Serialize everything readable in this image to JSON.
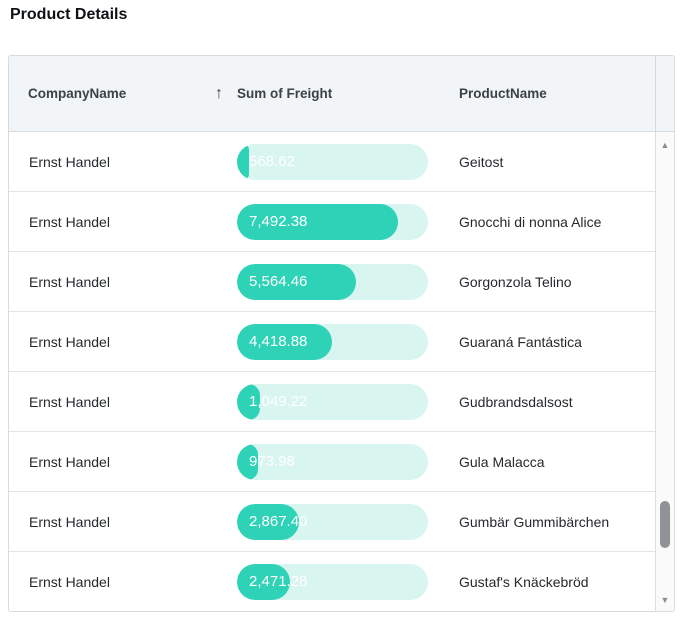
{
  "title": "Product Details",
  "colors": {
    "accent": "#2ed3b7",
    "track": "#d9f5ef",
    "header_bg": "#f1f5f8"
  },
  "table": {
    "columns": [
      {
        "label": "CompanyName",
        "sorted": "ascending"
      },
      {
        "label": "Sum of Freight"
      },
      {
        "label": "ProductName"
      }
    ],
    "sort_icon": "↑",
    "bar_scale_max": 8900,
    "rows": [
      {
        "company": "Ernst Handel",
        "freight": "568.62",
        "fill_pct": 6.4,
        "product": "Geitost"
      },
      {
        "company": "Ernst Handel",
        "freight": "7,492.38",
        "fill_pct": 84.2,
        "product": "Gnocchi di nonna Alice"
      },
      {
        "company": "Ernst Handel",
        "freight": "5,564.46",
        "fill_pct": 62.5,
        "product": "Gorgonzola Telino"
      },
      {
        "company": "Ernst Handel",
        "freight": "4,418.88",
        "fill_pct": 49.7,
        "product": "Guaraná Fantástica"
      },
      {
        "company": "Ernst Handel",
        "freight": "1,049.22",
        "fill_pct": 11.8,
        "product": "Gudbrandsdalsost"
      },
      {
        "company": "Ernst Handel",
        "freight": "973.98",
        "fill_pct": 10.9,
        "product": "Gula Malacca"
      },
      {
        "company": "Ernst Handel",
        "freight": "2,867.40",
        "fill_pct": 32.2,
        "product": "Gumbär Gummibärchen"
      },
      {
        "company": "Ernst Handel",
        "freight": "2,471.28",
        "fill_pct": 27.8,
        "product": "Gustaf's Knäckebröd"
      }
    ]
  },
  "scrollbar": {
    "up_icon": "▲",
    "down_icon": "▼"
  }
}
